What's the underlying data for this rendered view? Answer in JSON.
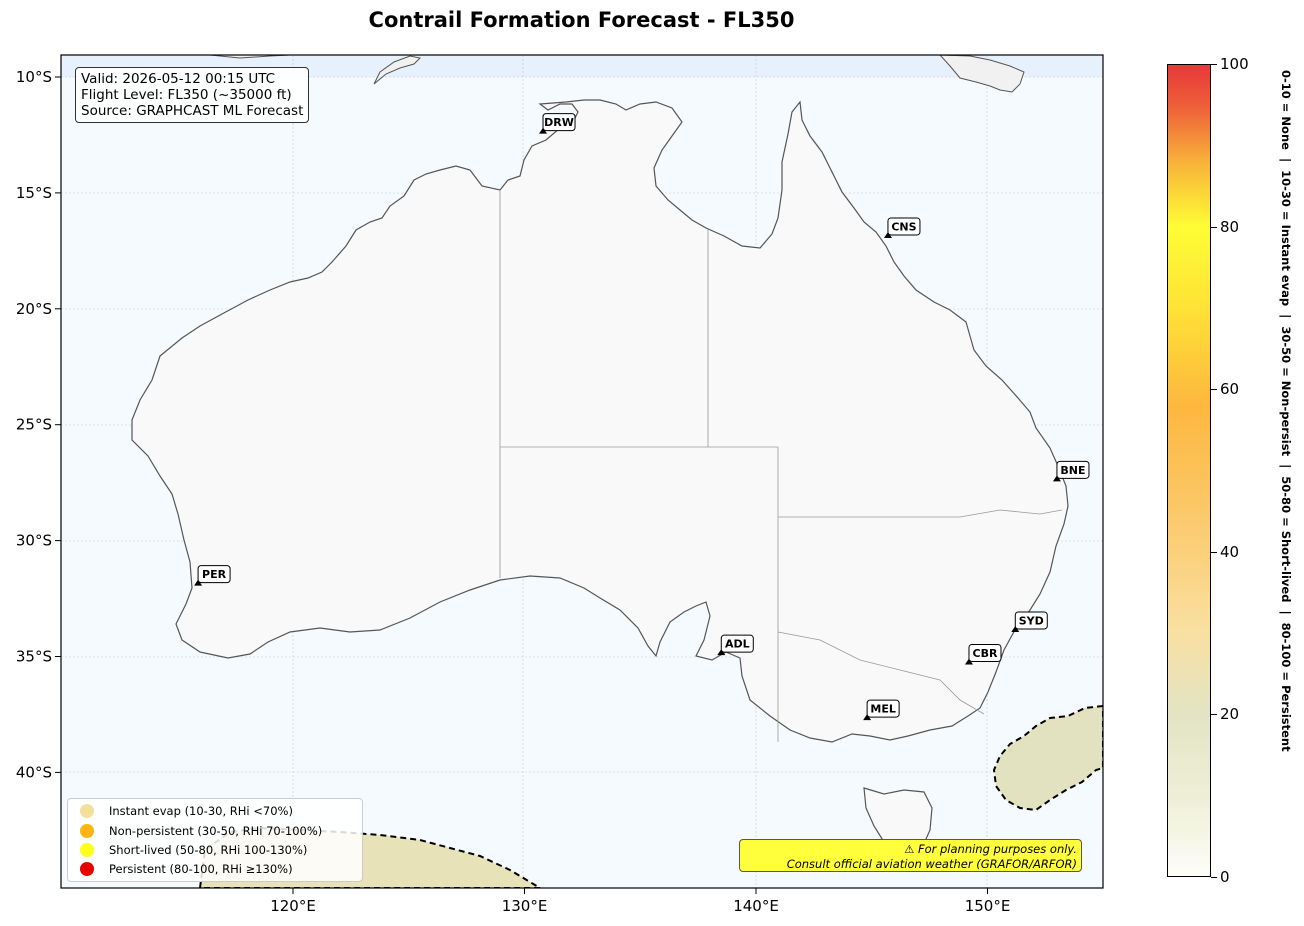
{
  "title": "Contrail Formation Forecast - FL350",
  "info_box": {
    "valid": "Valid: 2026-05-12 00:15 UTC",
    "flight_level": "Flight Level: FL350 (~35000 ft)",
    "source": "Source: GRAPHCAST ML Forecast"
  },
  "axes": {
    "lon_ticks": [
      "120°E",
      "130°E",
      "140°E",
      "150°E"
    ],
    "lat_ticks": [
      "10°S",
      "15°S",
      "20°S",
      "25°S",
      "30°S",
      "35°S",
      "40°S"
    ]
  },
  "airports": [
    {
      "code": "DRW",
      "lon": 130.8,
      "lat": -12.4
    },
    {
      "code": "CNS",
      "lon": 145.7,
      "lat": -16.9
    },
    {
      "code": "BNE",
      "lon": 153.0,
      "lat": -27.4
    },
    {
      "code": "PER",
      "lon": 115.9,
      "lat": -31.9
    },
    {
      "code": "ADL",
      "lon": 138.5,
      "lat": -34.9
    },
    {
      "code": "SYD",
      "lon": 151.2,
      "lat": -33.9
    },
    {
      "code": "CBR",
      "lon": 149.2,
      "lat": -35.3
    },
    {
      "code": "MEL",
      "lon": 144.8,
      "lat": -37.7
    }
  ],
  "legend": [
    {
      "label": "Instant evap (10-30, RHi <70%)",
      "color": "#f1df9a"
    },
    {
      "label": "Non-persistent (30-50, RHi 70-100%)",
      "color": "#fdb514"
    },
    {
      "label": "Short-lived (50-80, RHi 100-130%)",
      "color": "#ffff1a"
    },
    {
      "label": "Persistent (80-100, RHi ≥130%)",
      "color": "#e60000"
    }
  ],
  "disclaimer": {
    "line1": "⚠ For planning purposes only.",
    "line2": "Consult official aviation weather (GRAFOR/ARFOR)"
  },
  "colorbar": {
    "ticks": [
      "0",
      "20",
      "40",
      "60",
      "80",
      "100"
    ],
    "title": "0-10 = None  |  10-30 = Instant evap  |  30-50 = Non-persist  |  50-80 = Short-lived  |  80-100 = Persistent"
  },
  "colors": {
    "ocean": "#f5faff",
    "land": "#f9f9f9",
    "contrail_patch": "#e2e2c0",
    "disclaimer_bg": "#ffff3c"
  }
}
